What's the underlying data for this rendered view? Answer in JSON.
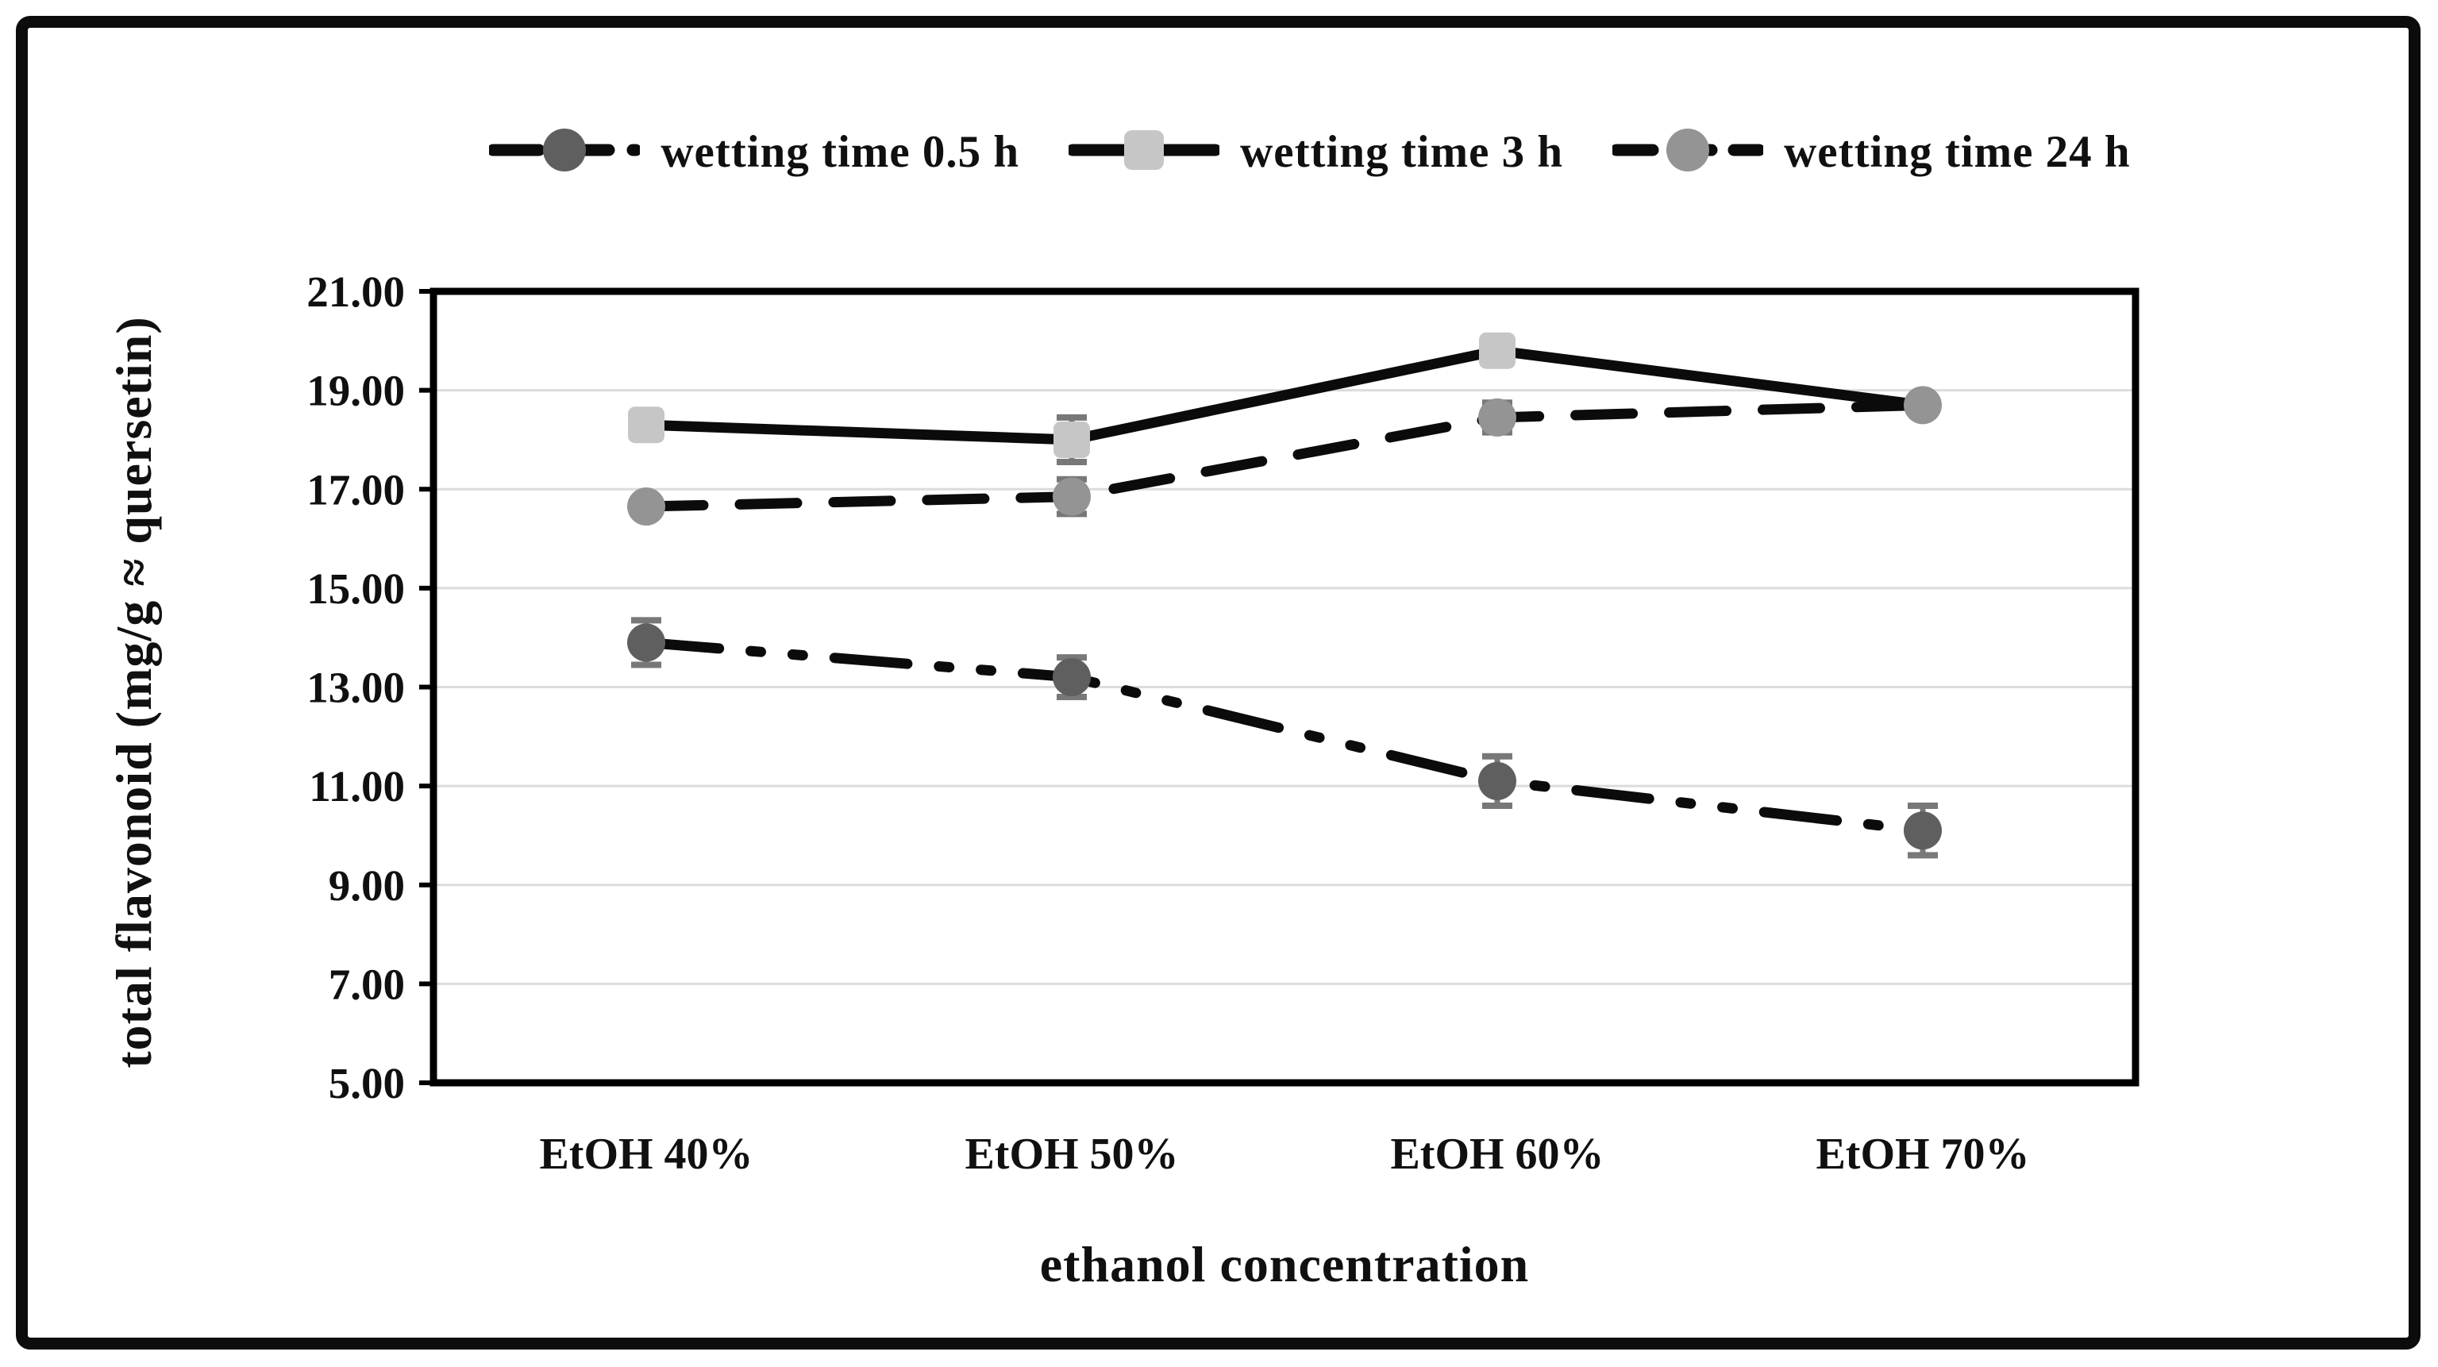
{
  "figure": {
    "border_color": "#0c0c0c",
    "background_color": "#ffffff"
  },
  "legend": {
    "items": [
      {
        "label": "wetting time 0.5 h",
        "marker": "circle",
        "marker_color": "#5f5f5f",
        "line_style": "dash-dot-dot",
        "line_color": "#0b0b0b"
      },
      {
        "label": "wetting time 3 h",
        "marker": "square",
        "marker_color": "#c6c6c6",
        "line_style": "solid",
        "line_color": "#0b0b0b"
      },
      {
        "label": "wetting time 24 h",
        "marker": "circle",
        "marker_color": "#949494",
        "line_style": "dash",
        "line_color": "#0b0b0b"
      }
    ]
  },
  "chart_data": {
    "type": "line",
    "title": "",
    "xlabel": "ethanol concentration",
    "ylabel": "total flavonoid (mg/g ≈ quersetin)",
    "categories": [
      "EtOH 40%",
      "EtOH 50%",
      "EtOH 60%",
      "EtOH 70%"
    ],
    "series": [
      {
        "name": "wetting time 0.5 h",
        "line_style": "dash-dot-dot",
        "line_color": "#0b0b0b",
        "marker": "circle",
        "marker_color": "#5f5f5f",
        "values": [
          13.9,
          13.2,
          11.1,
          10.1
        ],
        "errors": [
          0.45,
          0.4,
          0.5,
          0.5
        ]
      },
      {
        "name": "wetting time 3 h",
        "line_style": "solid",
        "line_color": "#0b0b0b",
        "marker": "square",
        "marker_color": "#c6c6c6",
        "values": [
          18.3,
          18.0,
          19.8,
          18.7
        ],
        "errors": [
          0,
          0.45,
          0,
          0
        ],
        "hide_marker_at": [
          3
        ]
      },
      {
        "name": "wetting time 24 h",
        "line_style": "dash",
        "line_color": "#0b0b0b",
        "marker": "circle",
        "marker_color": "#949494",
        "values": [
          16.65,
          16.85,
          18.45,
          18.7
        ],
        "errors": [
          0,
          0.35,
          0.3,
          0
        ]
      }
    ],
    "ylim": [
      5,
      21
    ],
    "ytick_step": 2,
    "yticks": [
      "21.00",
      "19.00",
      "17.00",
      "15.00",
      "13.00",
      "11.00",
      "9.00",
      "7.00",
      "5.00"
    ],
    "grid": true,
    "gridline_color": "#dcdcdc",
    "error_bar_color": "#787878",
    "frame_color": "#000000",
    "legend_position": "top"
  }
}
